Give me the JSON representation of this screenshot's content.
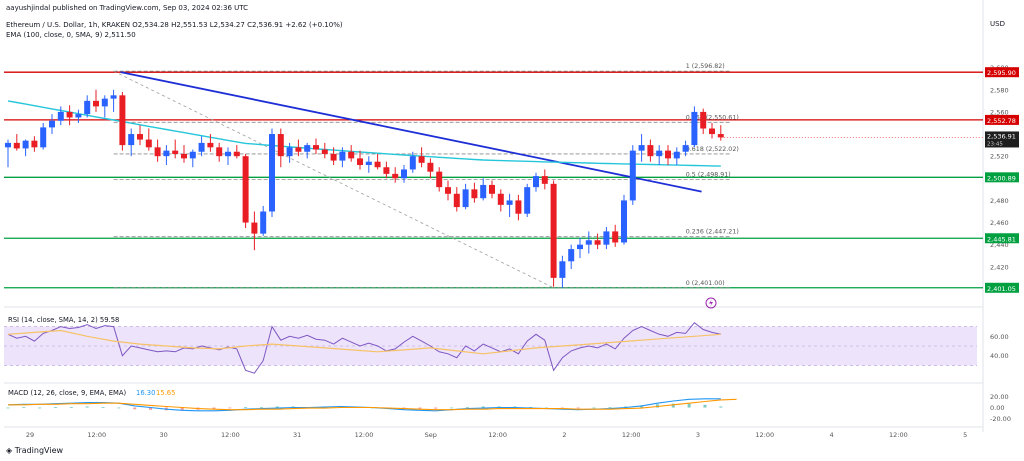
{
  "header": {
    "published": "aayushjindal published on TradingView.com, Sep 03, 2024 02:36 UTC",
    "symbol_line": "Ethereum / U.S. Dollar, 1h, KRAKEN  O2,534.28  H2,551.53  L2,534.27  C2,536.91  +2.62 (+0.10%)",
    "ema_line": "EMA (100, close, 0, SMA, 9)  2,511.50"
  },
  "currency": "USD",
  "footer": {
    "brand": "TradingView"
  },
  "colors": {
    "bull": "#2962ff",
    "bear": "#e91e24",
    "ema": "#26c6da",
    "trend": "#1f2fd6",
    "resistance": "#d50000",
    "support": "#00a040",
    "rsi": "#7e57c2",
    "rsi_ma": "#f7c266",
    "rsi_band": "#ede3fb",
    "macd": "#2196f3",
    "signal": "#ff9800"
  },
  "chart_data": [
    {
      "type": "candlestick",
      "title": "Ethereum / U.S. Dollar, 1h, KRAKEN",
      "ylim": [
        2390,
        2625
      ],
      "price_ticks": [
        2420,
        2440,
        2460,
        2480,
        2500,
        2520,
        2540,
        2560,
        2580,
        2600
      ],
      "x_ticks": [
        "29",
        "12:00",
        "30",
        "12:00",
        "31",
        "12:00",
        "Sep",
        "12:00",
        "2",
        "12:00",
        "3",
        "12:00",
        "4",
        "12:00",
        "5"
      ],
      "candles": [
        [
          2528,
          2535,
          2510,
          2532
        ],
        [
          2532,
          2540,
          2525,
          2527
        ],
        [
          2527,
          2535,
          2520,
          2534
        ],
        [
          2534,
          2538,
          2524,
          2528
        ],
        [
          2528,
          2550,
          2526,
          2546
        ],
        [
          2546,
          2558,
          2540,
          2552
        ],
        [
          2552,
          2565,
          2548,
          2560
        ],
        [
          2560,
          2566,
          2548,
          2555
        ],
        [
          2555,
          2562,
          2550,
          2558
        ],
        [
          2558,
          2575,
          2555,
          2570
        ],
        [
          2570,
          2580,
          2560,
          2565
        ],
        [
          2565,
          2575,
          2555,
          2572
        ],
        [
          2572,
          2580,
          2560,
          2575
        ],
        [
          2575,
          2578,
          2525,
          2530
        ],
        [
          2530,
          2545,
          2520,
          2540
        ],
        [
          2540,
          2548,
          2530,
          2535
        ],
        [
          2535,
          2545,
          2525,
          2528
        ],
        [
          2528,
          2535,
          2515,
          2520
        ],
        [
          2520,
          2530,
          2512,
          2525
        ],
        [
          2525,
          2535,
          2518,
          2522
        ],
        [
          2522,
          2530,
          2514,
          2518
        ],
        [
          2518,
          2526,
          2510,
          2524
        ],
        [
          2524,
          2538,
          2520,
          2532
        ],
        [
          2532,
          2540,
          2524,
          2528
        ],
        [
          2528,
          2532,
          2515,
          2520
        ],
        [
          2520,
          2528,
          2512,
          2524
        ],
        [
          2524,
          2530,
          2518,
          2520
        ],
        [
          2520,
          2522,
          2455,
          2460
        ],
        [
          2460,
          2470,
          2435,
          2450
        ],
        [
          2450,
          2475,
          2448,
          2470
        ],
        [
          2470,
          2545,
          2465,
          2540
        ],
        [
          2540,
          2545,
          2510,
          2520
        ],
        [
          2520,
          2532,
          2514,
          2528
        ],
        [
          2528,
          2535,
          2520,
          2524
        ],
        [
          2524,
          2532,
          2518,
          2530
        ],
        [
          2530,
          2536,
          2522,
          2526
        ],
        [
          2526,
          2532,
          2518,
          2522
        ],
        [
          2522,
          2528,
          2512,
          2516
        ],
        [
          2516,
          2528,
          2510,
          2524
        ],
        [
          2524,
          2530,
          2515,
          2518
        ],
        [
          2518,
          2525,
          2508,
          2512
        ],
        [
          2512,
          2520,
          2505,
          2515
        ],
        [
          2515,
          2522,
          2508,
          2510
        ],
        [
          2510,
          2515,
          2500,
          2504
        ],
        [
          2504,
          2510,
          2496,
          2500
        ],
        [
          2500,
          2512,
          2496,
          2508
        ],
        [
          2508,
          2524,
          2505,
          2520
        ],
        [
          2520,
          2528,
          2510,
          2514
        ],
        [
          2514,
          2518,
          2500,
          2506
        ],
        [
          2506,
          2510,
          2488,
          2492
        ],
        [
          2492,
          2498,
          2480,
          2486
        ],
        [
          2486,
          2492,
          2470,
          2474
        ],
        [
          2474,
          2495,
          2472,
          2490
        ],
        [
          2490,
          2496,
          2478,
          2482
        ],
        [
          2482,
          2500,
          2480,
          2494
        ],
        [
          2494,
          2498,
          2482,
          2486
        ],
        [
          2486,
          2490,
          2470,
          2476
        ],
        [
          2476,
          2486,
          2465,
          2480
        ],
        [
          2480,
          2485,
          2462,
          2468
        ],
        [
          2468,
          2495,
          2465,
          2492
        ],
        [
          2492,
          2505,
          2488,
          2502
        ],
        [
          2502,
          2508,
          2490,
          2495
        ],
        [
          2495,
          2498,
          2402,
          2410
        ],
        [
          2410,
          2430,
          2401,
          2425
        ],
        [
          2425,
          2440,
          2418,
          2436
        ],
        [
          2436,
          2446,
          2428,
          2440
        ],
        [
          2440,
          2452,
          2432,
          2444
        ],
        [
          2444,
          2450,
          2436,
          2440
        ],
        [
          2440,
          2456,
          2436,
          2452
        ],
        [
          2452,
          2458,
          2438,
          2442
        ],
        [
          2442,
          2485,
          2440,
          2480
        ],
        [
          2480,
          2530,
          2476,
          2525
        ],
        [
          2525,
          2540,
          2515,
          2530
        ],
        [
          2530,
          2535,
          2515,
          2520
        ],
        [
          2520,
          2530,
          2512,
          2525
        ],
        [
          2525,
          2530,
          2512,
          2518
        ],
        [
          2518,
          2528,
          2512,
          2524
        ],
        [
          2524,
          2534,
          2520,
          2530
        ],
        [
          2530,
          2565,
          2528,
          2560
        ],
        [
          2560,
          2563,
          2540,
          2545
        ],
        [
          2545,
          2550,
          2536,
          2540
        ],
        [
          2540,
          2548,
          2534,
          2537
        ]
      ],
      "ema_100": [
        2570,
        2535,
        2520,
        2511
      ],
      "trend_line": {
        "from": [
          2,
          2596
        ],
        "to": [
          72,
          2488
        ]
      },
      "fib_retracement": {
        "levels": [
          {
            "ratio": "1",
            "price": "2,596.82"
          },
          {
            "ratio": "0.764",
            "price": "2,550.61"
          },
          {
            "ratio": "0.618",
            "price": "2,522.02"
          },
          {
            "ratio": "0.5",
            "price": "2,498.91"
          },
          {
            "ratio": "0.236",
            "price": "2,447.21"
          },
          {
            "ratio": "0",
            "price": "2,401.00"
          }
        ]
      },
      "horizontal_lines": [
        {
          "price": 2595.9,
          "label": "2,595.90",
          "kind": "resistance"
        },
        {
          "price": 2552.78,
          "label": "2,552.78",
          "kind": "resistance"
        },
        {
          "price": 2500.89,
          "label": "2,500.89",
          "kind": "support"
        },
        {
          "price": 2445.81,
          "label": "2,445.81",
          "kind": "support"
        },
        {
          "price": 2401.05,
          "label": "2,401.05",
          "kind": "support"
        }
      ],
      "last_price": {
        "value": 2536.91,
        "label": "2,536.91",
        "countdown": "23:45"
      }
    },
    {
      "type": "line",
      "title": "RSI (14, close, SMA, 14, 2)  59.58",
      "ylim": [
        15,
        85
      ],
      "ticks": [
        40,
        60
      ],
      "band": [
        30,
        70
      ],
      "series": [
        {
          "name": "RSI",
          "values": [
            62,
            58,
            60,
            55,
            63,
            66,
            70,
            68,
            69,
            72,
            68,
            71,
            70,
            40,
            50,
            48,
            46,
            44,
            45,
            44,
            48,
            47,
            50,
            48,
            46,
            49,
            47,
            25,
            22,
            35,
            70,
            56,
            60,
            58,
            61,
            57,
            56,
            52,
            58,
            54,
            50,
            53,
            50,
            45,
            47,
            54,
            60,
            55,
            50,
            44,
            42,
            38,
            50,
            45,
            52,
            48,
            44,
            47,
            42,
            55,
            62,
            56,
            25,
            38,
            45,
            48,
            50,
            48,
            52,
            47,
            58,
            66,
            70,
            66,
            62,
            60,
            64,
            63,
            74,
            67,
            64,
            62
          ]
        },
        {
          "name": "RSI-based MA",
          "values": [
            62,
            64,
            66,
            60,
            55,
            52,
            50,
            48,
            47,
            50,
            52,
            50,
            48,
            46,
            44,
            46,
            48,
            45,
            42,
            45,
            48,
            50,
            52,
            54,
            56,
            58,
            60,
            62
          ]
        }
      ]
    },
    {
      "type": "line",
      "title": "MACD (12, 26, close, 9, EMA, EMA)",
      "values_shown": [
        "16.30",
        "15.65"
      ],
      "ylim": [
        -30,
        32
      ],
      "ticks": [
        -20,
        0,
        20
      ],
      "series": [
        {
          "name": "MACD",
          "values": [
            5,
            6,
            6,
            7,
            8,
            9,
            9,
            8,
            3,
            0,
            -3,
            -5,
            -6,
            -6,
            -5,
            -3,
            -2,
            -1,
            0,
            0,
            1,
            2,
            1,
            0,
            -2,
            -4,
            -5,
            -6,
            -4,
            -2,
            -1,
            0,
            0,
            -1,
            -2,
            -3,
            -4,
            -3,
            -2,
            0,
            3,
            8,
            12,
            15,
            16,
            16
          ]
        },
        {
          "name": "Signal",
          "values": [
            5,
            5,
            6,
            6,
            7,
            7,
            8,
            8,
            6,
            4,
            2,
            0,
            -2,
            -3,
            -4,
            -4,
            -3,
            -3,
            -2,
            -1,
            -1,
            0,
            0,
            0,
            -1,
            -2,
            -3,
            -4,
            -4,
            -3,
            -3,
            -2,
            -2,
            -2,
            -2,
            -2,
            -3,
            -3,
            -3,
            -2,
            -1,
            2,
            5,
            8,
            11,
            14,
            15
          ]
        }
      ]
    }
  ]
}
